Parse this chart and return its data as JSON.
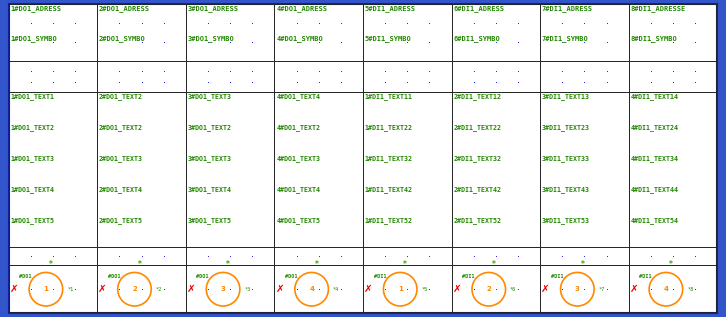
{
  "fig_width": 7.26,
  "fig_height": 3.17,
  "dpi": 100,
  "bg_color": "#3355cc",
  "inner_bg": "#ffffff",
  "grid_color": "#222222",
  "green": "#228800",
  "blue_dot": "#0000ee",
  "orange": "#ff8800",
  "red": "#ee0000",
  "ast_green": "#33aa00",
  "n_cols": 8,
  "header_row1": [
    "1#DO1_ADRESS",
    "2#DO1_ADRESS",
    "3#DO1_ADRESS",
    "4#DO1_ADRESS",
    "5#DI1_ADRESS",
    "6#DI1_ADRESS",
    "7#DI1_ADRESS",
    "8#DI1_ADRESSE"
  ],
  "header_row2": [
    "1#DO1_SYMBO",
    "2#DO1_SYMBO",
    "3#DO1_SYMBO",
    "4#DO1_SYMBO",
    "5#DI1_SYMBO",
    "6#DI1_SYMBO",
    "7#DI1_SYMBO",
    "8#DI1_SYMBO"
  ],
  "text_rows": [
    [
      "1#DO1_TEXT1",
      "2#DO1_TEXT2",
      "3#DO1_TEXT3",
      "4#DO1_TEXT4",
      "1#DI1_TEXT11",
      "2#DI1_TEXT12",
      "3#DI1_TEXT13",
      "4#DI1_TEXT14"
    ],
    [
      "1#DO1_TEXT2",
      "2#DO1_TEXT2",
      "3#DO1_TEXT2",
      "4#DO1_TEXT2",
      "1#DI1_TEXT22",
      "2#DI1_TEXT22",
      "3#DI1_TEXT23",
      "4#DI1_TEXT24"
    ],
    [
      "1#DO1_TEXT3",
      "2#DO1_TEXT3",
      "3#DO1_TEXT3",
      "4#DO1_TEXT3",
      "1#DI1_TEXT32",
      "2#DI1_TEXT32",
      "3#DI1_TEXT33",
      "4#DI1_TEXT34"
    ],
    [
      "1#DO1_TEXT4",
      "2#DO1_TEXT4",
      "3#DO1_TEXT4",
      "4#DO1_TEXT4",
      "1#DI1_TEXT42",
      "2#DI1_TEXT42",
      "3#DI1_TEXT43",
      "4#DI1_TEXT44"
    ],
    [
      "1#DO1_TEXT5",
      "2#DO1_TEXT5",
      "3#DO1_TEXT5",
      "4#DO1_TEXT5",
      "1#DI1_TEXT52",
      "2#DI1_TEXT52",
      "3#DI1_TEXT53",
      "4#DI1_TEXT54"
    ]
  ],
  "circle_nums": [
    "1",
    "2",
    "3",
    "4",
    "1",
    "2",
    "3",
    "4"
  ],
  "prefix_labels": [
    "#DO1",
    "#DO1",
    "#DO1",
    "#DO1",
    "#DI1",
    "#DI1",
    "#DI1",
    "#DI1"
  ],
  "counters": [
    "*1",
    "*2",
    "*3",
    "*4",
    "*5",
    "*6",
    "*7",
    "*8"
  ]
}
